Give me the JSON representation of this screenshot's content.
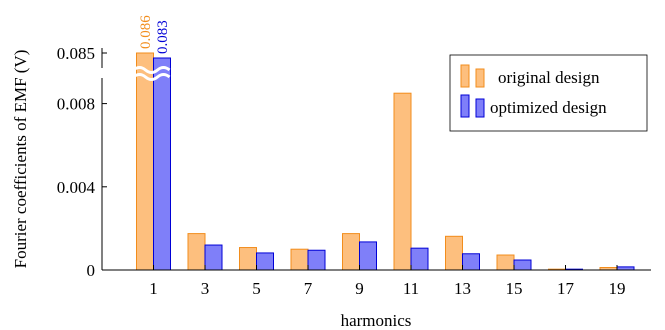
{
  "chart_data": {
    "type": "bar",
    "xlabel": "harmonics",
    "ylabel": "Fourier coefficients of EMF (V)",
    "categories": [
      "1",
      "3",
      "5",
      "7",
      "9",
      "11",
      "13",
      "15",
      "17",
      "19"
    ],
    "series": [
      {
        "name": "original design",
        "color": "#fdbf7e",
        "edge": "#f28d1c",
        "values": [
          0.086,
          0.00175,
          0.00108,
          0.001,
          0.00175,
          0.0085,
          0.00162,
          0.00072,
          4e-05,
          0.00012
        ]
      },
      {
        "name": "optimized design",
        "color": "#7f7ff9",
        "edge": "#0000d6",
        "values": [
          0.083,
          0.0012,
          0.00082,
          0.00095,
          0.00135,
          0.00105,
          0.00078,
          0.00048,
          4e-05,
          0.00015
        ]
      }
    ],
    "y_ticks": [
      "0",
      "0.004",
      "0.008",
      "0.085"
    ],
    "ylim": [
      0,
      0.0105
    ],
    "axis_break": true,
    "data_labels": [
      "0.086",
      "0.083"
    ],
    "legend_position": "top-right",
    "grid": false
  }
}
